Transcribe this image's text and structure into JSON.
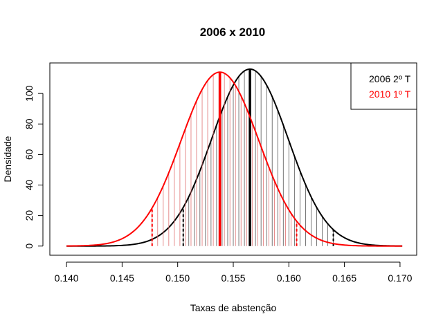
{
  "chart_data": {
    "type": "line",
    "title": "2006 x 2010",
    "xlabel": "Taxas de abstenção",
    "ylabel": "Densidade",
    "xlim": [
      0.1385,
      0.1715
    ],
    "ylim": [
      -6,
      120
    ],
    "xticks": [
      0.14,
      0.145,
      0.15,
      0.155,
      0.16,
      0.165,
      0.17
    ],
    "xtick_labels": [
      "0.140",
      "0.145",
      "0.150",
      "0.155",
      "0.160",
      "0.165",
      "0.170"
    ],
    "yticks": [
      0,
      20,
      40,
      60,
      80,
      100
    ],
    "ytick_labels": [
      "0",
      "20",
      "40",
      "60",
      "80",
      "100"
    ],
    "grid": false,
    "legend_position": "top-right",
    "x_range": [
      0.14,
      0.1702
    ],
    "series": [
      {
        "name": "2006 2º T",
        "color": "#000000",
        "mean": 0.1565,
        "sd": 0.00344,
        "ci_lower": 0.1505,
        "ci_upper": 0.164,
        "band_start": 0.1505,
        "band_end": 0.164,
        "band_step": 0.0005
      },
      {
        "name": "2010 1º T",
        "color": "#ff0000",
        "mean": 0.1538,
        "sd": 0.0035,
        "ci_lower": 0.1477,
        "ci_upper": 0.1607,
        "band_start": 0.1477,
        "band_end": 0.1607,
        "band_step": 0.0005
      }
    ]
  }
}
